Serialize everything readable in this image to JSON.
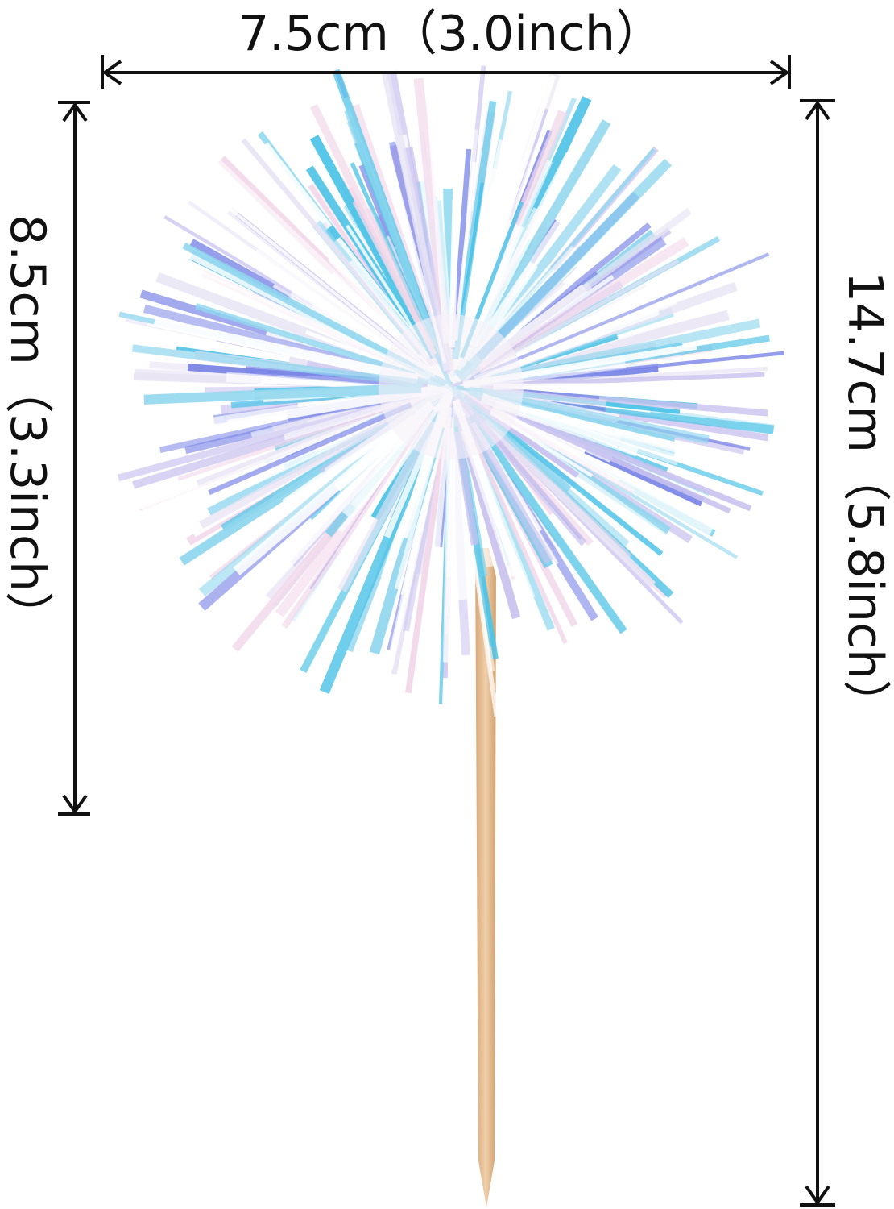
{
  "dimensions": {
    "width_label": "7.5cm（3.0inch）",
    "head_height_label": "8.5cm（3.3inch）",
    "total_height_label": "14.7cm（5.8inch）"
  },
  "product": {
    "description_icon": "iridescent-tinsel-pompom-cupcake-topper",
    "colors": {
      "tinsel": [
        "#ffffff",
        "#e8e4f4",
        "#c9c2ef",
        "#8fd6ee",
        "#4fc3e6",
        "#7b86e6",
        "#f2d8ea"
      ],
      "stick": "#e5bf98",
      "line": "#111111"
    }
  }
}
